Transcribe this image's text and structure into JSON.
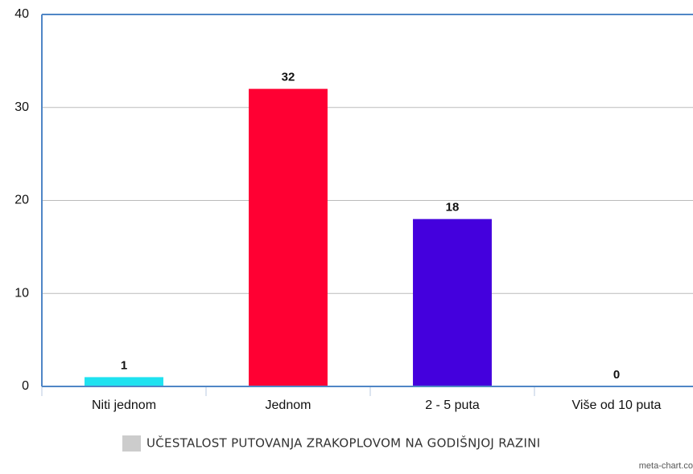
{
  "chart_data": {
    "type": "bar",
    "categories": [
      "Niti jednom",
      "Jednom",
      "2 - 5 puta",
      "Više od 10 puta"
    ],
    "values": [
      1,
      32,
      18,
      0
    ],
    "colors": [
      "#1fe2f0",
      "#ff0033",
      "#4400dd",
      "#999999"
    ],
    "legend": "UČESTALOST PUTOVANJA ZRAKOPLOVOM NA GODIŠNJOJ RAZINI",
    "legend_color": "#cccccc",
    "credit": "meta-chart.co",
    "ylim": [
      0,
      40
    ],
    "yticks": [
      0,
      10,
      20,
      30,
      40
    ],
    "grid": true
  }
}
